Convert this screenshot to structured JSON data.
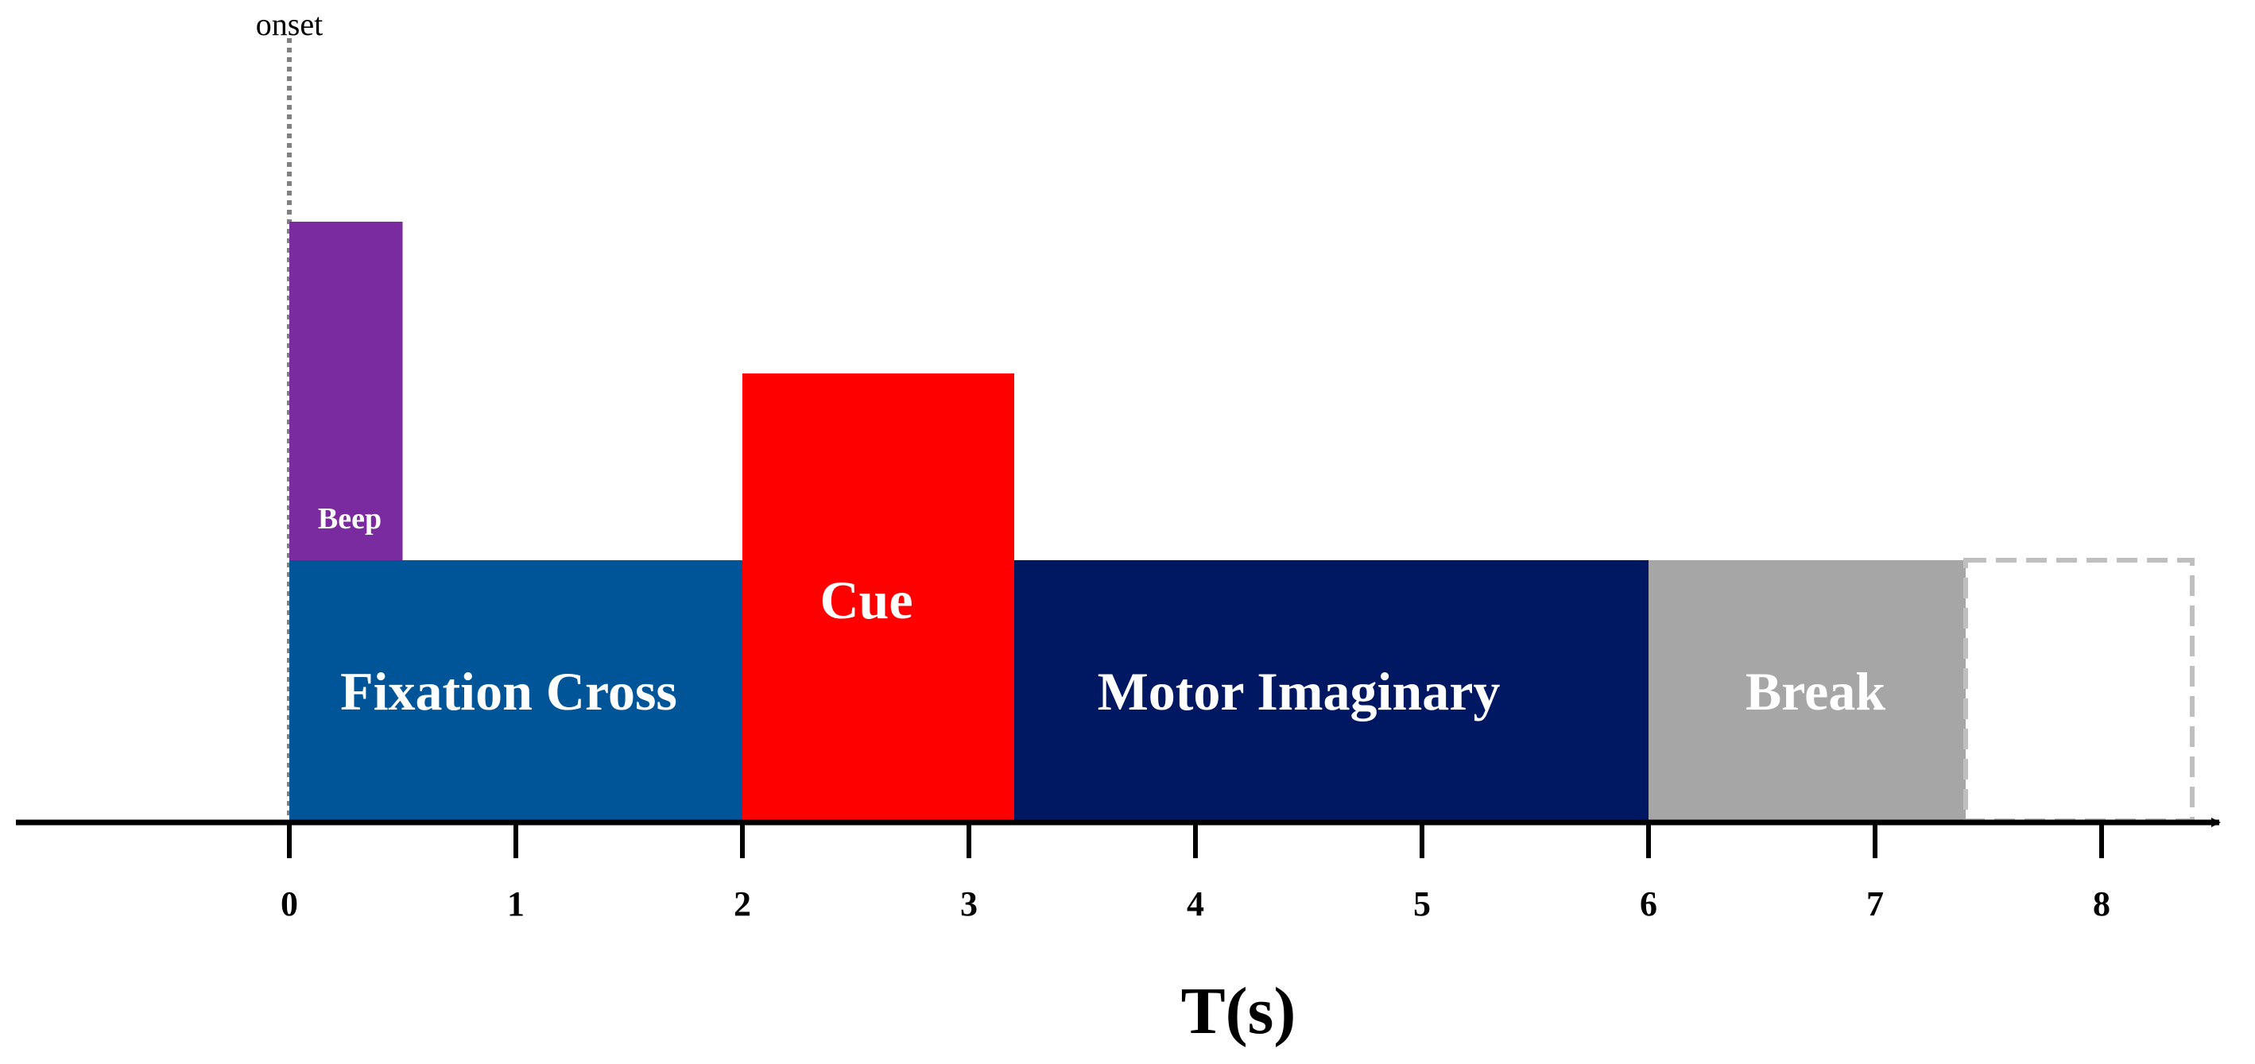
{
  "title": "",
  "onset_label": "onset",
  "axis": {
    "label": "T(s)",
    "min": 0,
    "max": 8,
    "ticks": [
      "0",
      "1",
      "2",
      "3",
      "4",
      "5",
      "6",
      "7",
      "8"
    ]
  },
  "segments": [
    {
      "id": "beep",
      "label": "Beep",
      "start": 0,
      "end": 0.5,
      "color": "#7b2ba0"
    },
    {
      "id": "fixation",
      "label": "Fixation Cross",
      "start": 0,
      "end": 2,
      "color": "#005598"
    },
    {
      "id": "cue",
      "label": "Cue",
      "start": 2,
      "end": 3.2,
      "color": "#ff0000"
    },
    {
      "id": "motor",
      "label": "Motor Imaginary",
      "start": 3,
      "end": 6,
      "color": "#001862"
    },
    {
      "id": "break",
      "label": "Break",
      "start": 6,
      "end": 7.4,
      "color": "#a6a6a6"
    },
    {
      "id": "next",
      "label": "",
      "start": 7.4,
      "end": 8.4,
      "color": "#bfbfbf"
    }
  ]
}
